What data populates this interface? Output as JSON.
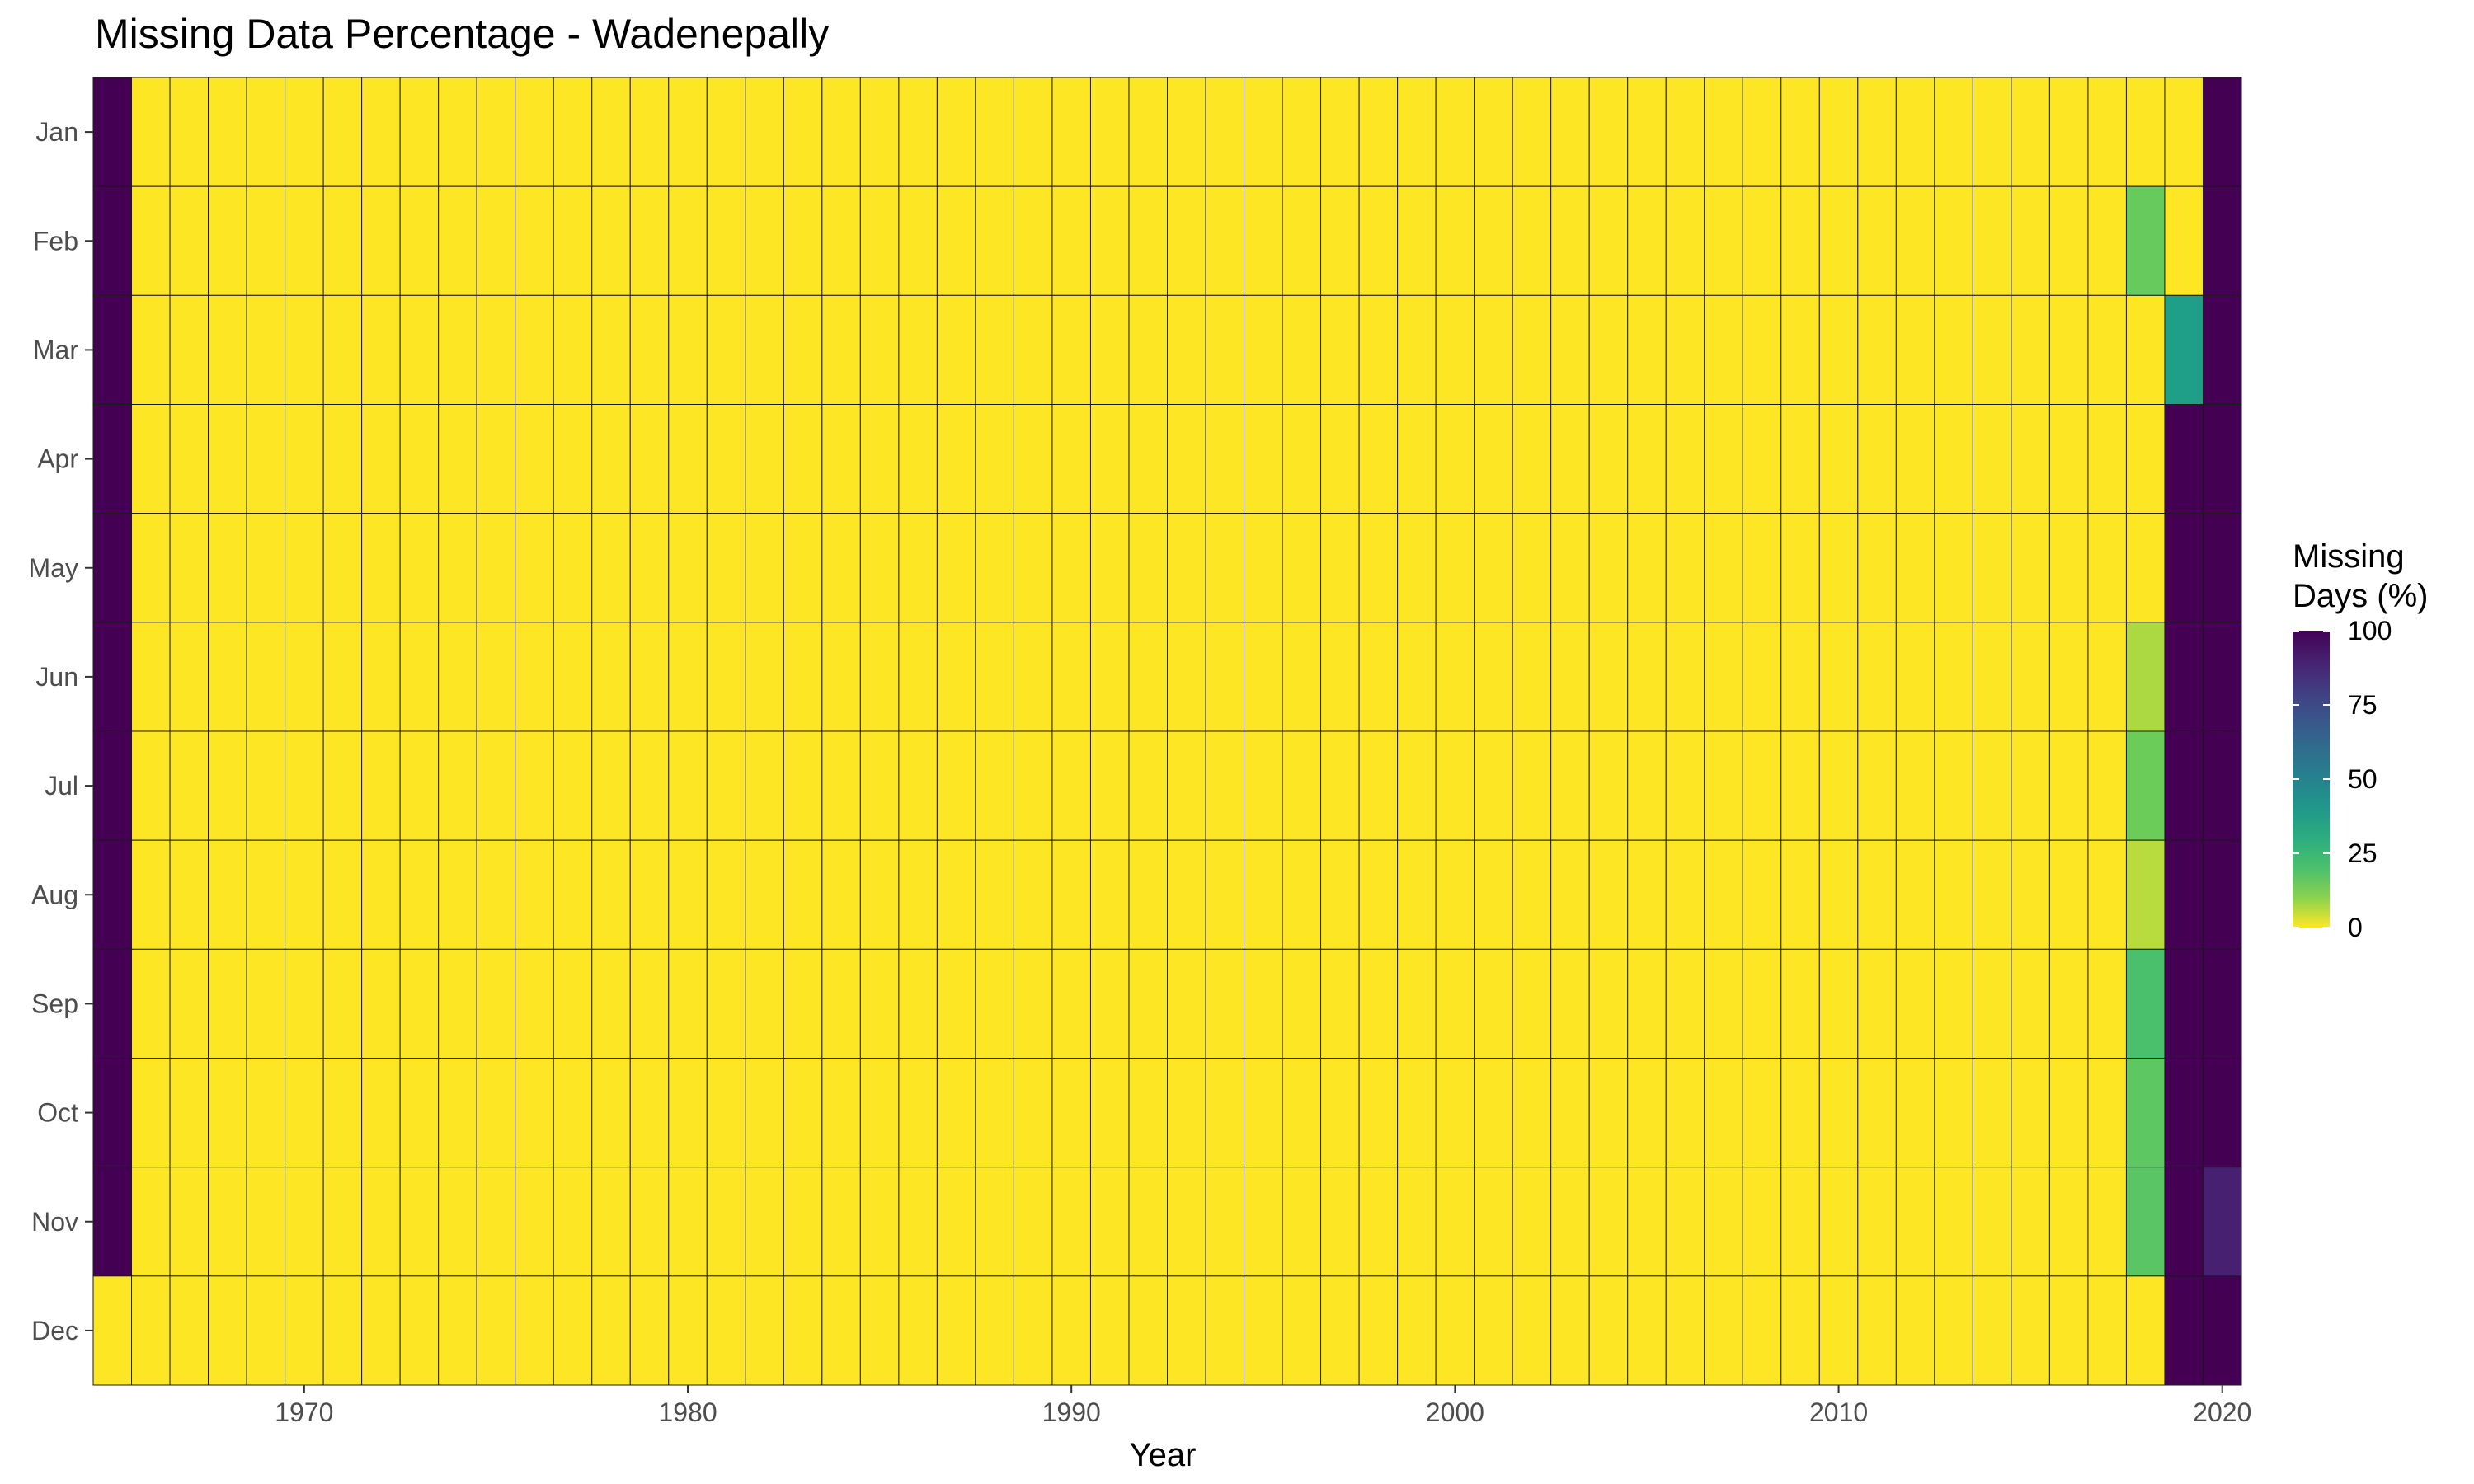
{
  "chart_data": {
    "type": "heatmap",
    "title": "Missing Data Percentage - Wadenepally",
    "xlabel": "Year",
    "ylabel": "",
    "x_range": [
      1965,
      2020
    ],
    "x_ticks": [
      1970,
      1980,
      1990,
      2000,
      2010,
      2020
    ],
    "months": [
      "Jan",
      "Feb",
      "Mar",
      "Apr",
      "May",
      "Jun",
      "Jul",
      "Aug",
      "Sep",
      "Oct",
      "Nov",
      "Dec"
    ],
    "default_value": 0,
    "special_cells": [
      {
        "year": 1965,
        "month": "Jan",
        "value": 100
      },
      {
        "year": 1965,
        "month": "Feb",
        "value": 100
      },
      {
        "year": 1965,
        "month": "Mar",
        "value": 100
      },
      {
        "year": 1965,
        "month": "Apr",
        "value": 100
      },
      {
        "year": 1965,
        "month": "May",
        "value": 100
      },
      {
        "year": 1965,
        "month": "Jun",
        "value": 100
      },
      {
        "year": 1965,
        "month": "Jul",
        "value": 100
      },
      {
        "year": 1965,
        "month": "Aug",
        "value": 100
      },
      {
        "year": 1965,
        "month": "Sep",
        "value": 100
      },
      {
        "year": 1965,
        "month": "Oct",
        "value": 100
      },
      {
        "year": 1965,
        "month": "Nov",
        "value": 100
      },
      {
        "year": 2018,
        "month": "Feb",
        "value": 14
      },
      {
        "year": 2018,
        "month": "Jun",
        "value": 7
      },
      {
        "year": 2018,
        "month": "Jul",
        "value": 13
      },
      {
        "year": 2018,
        "month": "Aug",
        "value": 6
      },
      {
        "year": 2018,
        "month": "Sep",
        "value": 20
      },
      {
        "year": 2018,
        "month": "Oct",
        "value": 16
      },
      {
        "year": 2018,
        "month": "Nov",
        "value": 17
      },
      {
        "year": 2019,
        "month": "Mar",
        "value": 37
      },
      {
        "year": 2019,
        "month": "Apr",
        "value": 100
      },
      {
        "year": 2019,
        "month": "May",
        "value": 100
      },
      {
        "year": 2019,
        "month": "Jun",
        "value": 100
      },
      {
        "year": 2019,
        "month": "Jul",
        "value": 100
      },
      {
        "year": 2019,
        "month": "Aug",
        "value": 100
      },
      {
        "year": 2019,
        "month": "Sep",
        "value": 100
      },
      {
        "year": 2019,
        "month": "Oct",
        "value": 100
      },
      {
        "year": 2019,
        "month": "Nov",
        "value": 100
      },
      {
        "year": 2019,
        "month": "Dec",
        "value": 100
      },
      {
        "year": 2020,
        "month": "Jan",
        "value": 100
      },
      {
        "year": 2020,
        "month": "Feb",
        "value": 100
      },
      {
        "year": 2020,
        "month": "Mar",
        "value": 100
      },
      {
        "year": 2020,
        "month": "Apr",
        "value": 100
      },
      {
        "year": 2020,
        "month": "May",
        "value": 100
      },
      {
        "year": 2020,
        "month": "Jun",
        "value": 100
      },
      {
        "year": 2020,
        "month": "Jul",
        "value": 100
      },
      {
        "year": 2020,
        "month": "Aug",
        "value": 100
      },
      {
        "year": 2020,
        "month": "Sep",
        "value": 100
      },
      {
        "year": 2020,
        "month": "Oct",
        "value": 100
      },
      {
        "year": 2020,
        "month": "Nov",
        "value": 90
      },
      {
        "year": 2020,
        "month": "Dec",
        "value": 100
      }
    ],
    "legend": {
      "title_line1": "Missing",
      "title_line2": "Days (%)",
      "ticks": [
        0,
        25,
        50,
        75,
        100
      ],
      "tick_labels": [
        "0",
        "25",
        "50",
        "75",
        "100"
      ],
      "colormap": "viridis (reversed)",
      "low_color": "#FDE725",
      "high_color": "#440154"
    }
  }
}
